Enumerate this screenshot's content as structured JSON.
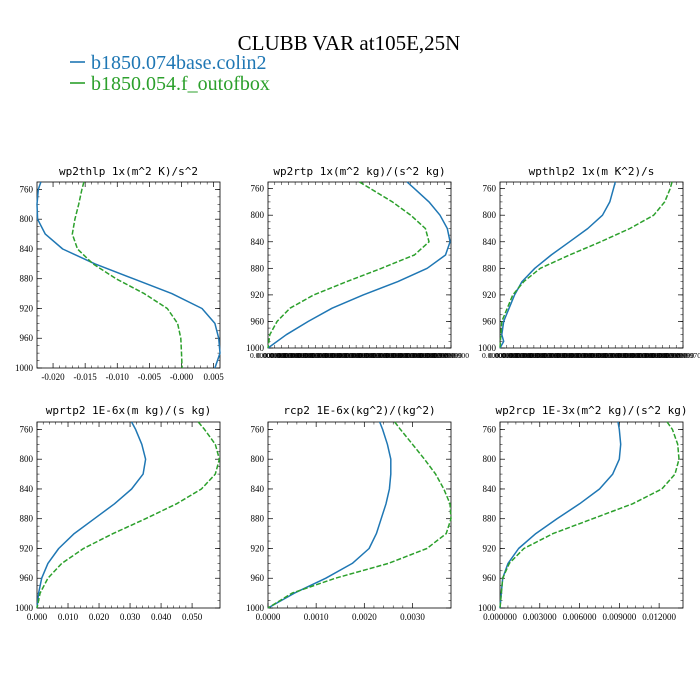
{
  "figure": {
    "title": "CLUBB VAR at105E,25N",
    "legend": [
      {
        "label": "b1850.074base.colin2",
        "color": "#1f77b4"
      },
      {
        "label": "b1850.054.f_outofbox",
        "color": "#2ca02c"
      }
    ]
  },
  "colors": {
    "series1": "#1f77b4",
    "series2": "#2ca02c",
    "axis": "#000000"
  },
  "chart_data": [
    {
      "type": "line",
      "title": "wp2thlp 1x(m^2 K)/s^2",
      "ylim": [
        1000,
        750
      ],
      "yticks": [
        "760",
        "800",
        "840",
        "880",
        "920",
        "960",
        "1000"
      ],
      "yticks_values": [
        760,
        800,
        840,
        880,
        920,
        960,
        1000
      ],
      "xlim": [
        -0.0225,
        0.006
      ],
      "xticks": [
        "-0.020",
        "-0.015",
        "-0.010",
        "-0.005",
        "-0.000",
        "0.005"
      ],
      "xticks_values": [
        -0.02,
        -0.015,
        -0.01,
        -0.005,
        0.0,
        0.005
      ],
      "y": [
        750,
        760,
        780,
        800,
        820,
        840,
        860,
        880,
        900,
        920,
        940,
        960,
        980,
        1000
      ],
      "series": [
        {
          "name": "b1850.074base.colin2",
          "values": [
            -0.0219,
            -0.0223,
            -0.0225,
            -0.0224,
            -0.0212,
            -0.0185,
            -0.0135,
            -0.0075,
            -0.0015,
            0.0032,
            0.0052,
            0.0058,
            0.0062,
            0.0052
          ]
        },
        {
          "name": "b1850.054.f_outofbox",
          "values": [
            -0.0152,
            -0.0155,
            -0.016,
            -0.0166,
            -0.017,
            -0.0162,
            -0.0138,
            -0.0102,
            -0.0058,
            -0.0022,
            -0.0006,
            -0.0001,
            0.0,
            0.0001
          ]
        }
      ]
    },
    {
      "type": "line",
      "title": "wp2rtp 1x(m^2 kg)/(s^2 kg)",
      "ylim": [
        1000,
        750
      ],
      "yticks": [
        "760",
        "800",
        "840",
        "880",
        "920",
        "960",
        "1000"
      ],
      "yticks_values": [
        760,
        800,
        840,
        880,
        920,
        960,
        1000
      ],
      "xlim": [
        0.0,
        1.0
      ],
      "xticks": [
        "0.00000000",
        "0.00000000",
        "0.00000000",
        "0.00000000",
        "0.00000000",
        "0.00000000",
        "0.00000000",
        "0.00000000",
        "0.00000000",
        "0.00000000",
        "0.00000000",
        "0.00000000",
        "0.00000000",
        "0.00000000",
        "0.00000000",
        "0.00000000",
        "0.00000000",
        "0.00000000",
        "0.00000000",
        "0.00000000",
        "0.00000000",
        "0.00000000",
        "0.00000000",
        "0.00000000",
        "0.00000000",
        "0.00000000",
        "0.00000000",
        "0.99999900"
      ],
      "y": [
        750,
        760,
        780,
        800,
        820,
        840,
        860,
        880,
        900,
        920,
        940,
        960,
        980,
        1000
      ],
      "series": [
        {
          "name": "b1850.074base.colin2",
          "values": [
            0.76,
            0.8,
            0.88,
            0.94,
            0.98,
            0.995,
            0.97,
            0.87,
            0.71,
            0.52,
            0.35,
            0.22,
            0.1,
            0.0
          ]
        },
        {
          "name": "b1850.054.f_outofbox",
          "values": [
            0.5,
            0.56,
            0.68,
            0.78,
            0.86,
            0.88,
            0.8,
            0.62,
            0.43,
            0.25,
            0.12,
            0.05,
            0.01,
            0.0
          ]
        }
      ]
    },
    {
      "type": "line",
      "title": "wpthlp2 1x(m K^2)/s",
      "ylim": [
        1000,
        750
      ],
      "yticks": [
        "760",
        "800",
        "840",
        "880",
        "920",
        "960",
        "1000"
      ],
      "yticks_values": [
        760,
        800,
        840,
        880,
        920,
        960,
        1000
      ],
      "xlim": [
        0.0,
        1.0
      ],
      "xticks": [
        "0.00000000",
        "0.00000000",
        "0.00000000",
        "0.00000000",
        "0.00000000",
        "0.00000000",
        "0.00000000",
        "0.00000000",
        "0.00000000",
        "0.00000000",
        "0.00000000",
        "0.00000000",
        "0.00000000",
        "0.00000000",
        "0.00000000",
        "0.00000000",
        "0.00000000",
        "0.00000000",
        "0.00000000",
        "0.00000000",
        "0.00000000",
        "0.00000000",
        "0.00000000",
        "0.00000000",
        "0.00000000",
        "0.00000000",
        "0.00000000",
        "0.99999970"
      ],
      "y": [
        750,
        760,
        780,
        800,
        820,
        840,
        860,
        880,
        900,
        920,
        940,
        960,
        980,
        990,
        1000
      ],
      "series": [
        {
          "name": "b1850.074base.colin2",
          "values": [
            0.63,
            0.62,
            0.6,
            0.56,
            0.48,
            0.38,
            0.28,
            0.19,
            0.12,
            0.08,
            0.05,
            0.02,
            0.01,
            0.02,
            0.0
          ]
        },
        {
          "name": "b1850.054.f_outofbox",
          "values": [
            0.94,
            0.93,
            0.9,
            0.84,
            0.71,
            0.55,
            0.38,
            0.22,
            0.13,
            0.07,
            0.04,
            0.01,
            0.005,
            0.002,
            0.0
          ]
        }
      ]
    },
    {
      "type": "line",
      "title": "wprtp2 1E-6x(m kg)/(s kg)",
      "ylim": [
        1000,
        750
      ],
      "yticks": [
        "760",
        "800",
        "840",
        "880",
        "920",
        "960",
        "1000"
      ],
      "yticks_values": [
        760,
        800,
        840,
        880,
        920,
        960,
        1000
      ],
      "xlim": [
        0.0,
        0.059
      ],
      "xticks": [
        "0.000",
        "0.010",
        "0.020",
        "0.030",
        "0.040",
        "0.050"
      ],
      "xticks_values": [
        0.0,
        0.01,
        0.02,
        0.03,
        0.04,
        0.05
      ],
      "y": [
        750,
        760,
        780,
        800,
        820,
        840,
        860,
        880,
        900,
        920,
        940,
        960,
        980,
        1000
      ],
      "series": [
        {
          "name": "b1850.074base.colin2",
          "values": [
            0.0305,
            0.0318,
            0.0338,
            0.035,
            0.0342,
            0.0305,
            0.025,
            0.0185,
            0.012,
            0.007,
            0.0035,
            0.0015,
            0.0005,
            0.0
          ]
        },
        {
          "name": "b1850.054.f_outofbox",
          "values": [
            0.052,
            0.054,
            0.0575,
            0.0588,
            0.0575,
            0.053,
            0.045,
            0.035,
            0.0245,
            0.015,
            0.008,
            0.0035,
            0.001,
            0.0
          ]
        }
      ]
    },
    {
      "type": "line",
      "title": "rcp2 1E-6x(kg^2)/(kg^2)",
      "ylim": [
        1000,
        750
      ],
      "yticks": [
        "760",
        "800",
        "840",
        "880",
        "920",
        "960",
        "1000"
      ],
      "yticks_values": [
        760,
        800,
        840,
        880,
        920,
        960,
        1000
      ],
      "xlim": [
        0.0,
        0.0038
      ],
      "xticks": [
        "0.0000",
        "0.0010",
        "0.0020",
        "0.0030"
      ],
      "xticks_values": [
        0.0,
        0.001,
        0.002,
        0.003
      ],
      "y": [
        750,
        760,
        780,
        800,
        820,
        840,
        860,
        880,
        900,
        920,
        940,
        960,
        980,
        1000
      ],
      "series": [
        {
          "name": "b1850.074base.colin2",
          "values": [
            0.00232,
            0.00238,
            0.00248,
            0.00255,
            0.00255,
            0.00252,
            0.00245,
            0.00235,
            0.00225,
            0.0021,
            0.00175,
            0.0012,
            0.00055,
            0.0
          ]
        },
        {
          "name": "b1850.054.f_outofbox",
          "values": [
            0.00263,
            0.00275,
            0.003,
            0.00325,
            0.00348,
            0.00365,
            0.00378,
            0.00382,
            0.0037,
            0.0033,
            0.0025,
            0.0014,
            0.0005,
            0.0
          ]
        }
      ]
    },
    {
      "type": "line",
      "title": "wp2rcp 1E-3x(m^2 kg)/(s^2 kg)",
      "ylim": [
        1000,
        750
      ],
      "yticks": [
        "760",
        "800",
        "840",
        "880",
        "920",
        "960",
        "1000"
      ],
      "yticks_values": [
        760,
        800,
        840,
        880,
        920,
        960,
        1000
      ],
      "xlim": [
        0.0,
        0.0138
      ],
      "xticks": [
        "0.000000",
        "0.003000",
        "0.006000",
        "0.009000",
        "0.012000"
      ],
      "xticks_values": [
        0.0,
        0.003,
        0.006,
        0.009,
        0.012
      ],
      "y": [
        750,
        760,
        780,
        800,
        820,
        840,
        860,
        880,
        900,
        920,
        940,
        960,
        980,
        1000
      ],
      "series": [
        {
          "name": "b1850.074base.colin2",
          "values": [
            0.0089,
            0.009,
            0.0091,
            0.009,
            0.0085,
            0.0075,
            0.006,
            0.0043,
            0.0027,
            0.0014,
            0.0006,
            0.0002,
            0.0001,
            0.0
          ]
        },
        {
          "name": "b1850.054.f_outofbox",
          "values": [
            0.0126,
            0.013,
            0.0134,
            0.0135,
            0.0132,
            0.0122,
            0.01,
            0.007,
            0.004,
            0.0018,
            0.0007,
            0.0002,
            0.0001,
            0.0
          ]
        }
      ]
    }
  ]
}
